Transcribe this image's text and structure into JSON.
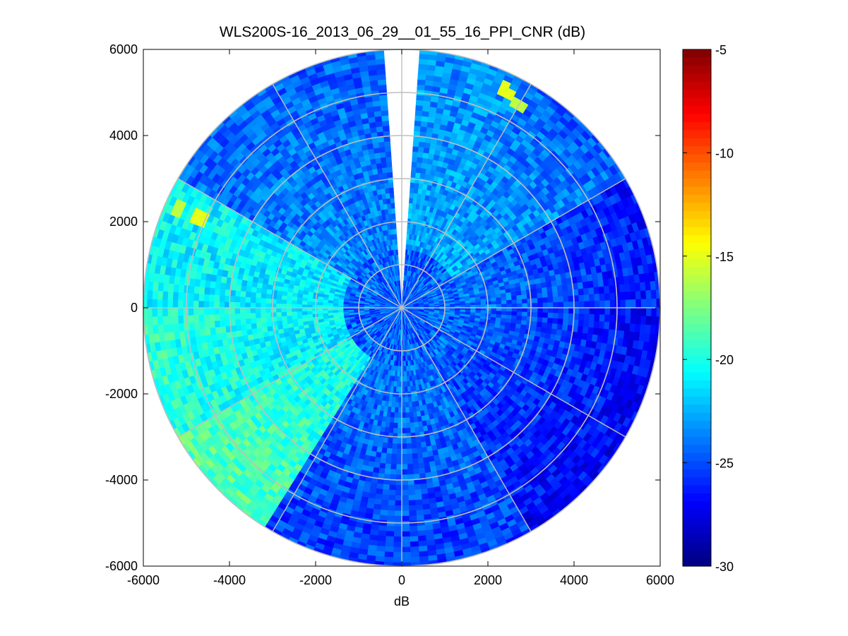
{
  "chart_data": {
    "type": "heatmap",
    "subtype": "polar-ppi",
    "title": "WLS200S-16_2013_06_29__01_55_16_PPI_CNR (dB)",
    "xlabel": "dB",
    "ylabel": "",
    "xlim": [
      -6000,
      6000
    ],
    "ylim": [
      -6000,
      6000
    ],
    "x_ticks": [
      -6000,
      -4000,
      -2000,
      0,
      2000,
      4000,
      6000
    ],
    "x_tick_labels": [
      "-6000",
      "-4000",
      "-2000",
      "0",
      "2000",
      "4000",
      "6000"
    ],
    "y_ticks": [
      6000,
      4000,
      2000,
      0,
      -2000,
      -4000,
      -6000
    ],
    "y_tick_labels": [
      "6000",
      "4000",
      "2000",
      "0",
      "-2000",
      "-4000",
      "-6000"
    ],
    "max_range": 6000,
    "range_rings": [
      1000,
      2000,
      3000,
      4000,
      5000,
      6000
    ],
    "spoke_angles_deg": [
      0,
      30,
      60,
      90,
      120,
      150,
      180,
      210,
      240,
      270,
      300,
      330
    ],
    "missing_sector_bearing_deg": [
      -4,
      4
    ],
    "colorbar": {
      "colormap": "jet",
      "min": -30,
      "max": -5,
      "ticks": [
        -5,
        -10,
        -15,
        -20,
        -25,
        -30
      ],
      "tick_labels": [
        "-5",
        "-10",
        "-15",
        "-20",
        "-25",
        "-30"
      ]
    },
    "sectors": [
      {
        "bearing_from": 4,
        "bearing_to": 30,
        "near_db": -22.5,
        "far_db": -23.5
      },
      {
        "bearing_from": 30,
        "bearing_to": 60,
        "near_db": -22.0,
        "far_db": -24.5
      },
      {
        "bearing_from": 60,
        "bearing_to": 90,
        "near_db": -23.0,
        "far_db": -26.5
      },
      {
        "bearing_from": 90,
        "bearing_to": 120,
        "near_db": -23.5,
        "far_db": -27.0
      },
      {
        "bearing_from": 120,
        "bearing_to": 150,
        "near_db": -24.0,
        "far_db": -27.0
      },
      {
        "bearing_from": 150,
        "bearing_to": 180,
        "near_db": -23.5,
        "far_db": -25.5
      },
      {
        "bearing_from": 180,
        "bearing_to": 212,
        "near_db": -23.5,
        "far_db": -25.5
      },
      {
        "bearing_from": 212,
        "bearing_to": 240,
        "near_db": -21.0,
        "far_db": -18.5
      },
      {
        "bearing_from": 240,
        "bearing_to": 270,
        "near_db": -21.5,
        "far_db": -19.5
      },
      {
        "bearing_from": 270,
        "bearing_to": 300,
        "near_db": -21.5,
        "far_db": -20.5
      },
      {
        "bearing_from": 300,
        "bearing_to": 326,
        "near_db": -23.0,
        "far_db": -24.5
      },
      {
        "bearing_from": 326,
        "bearing_to": 356,
        "near_db": -23.5,
        "far_db": -24.5
      }
    ],
    "hotspots": [
      {
        "x": 2450,
        "y": 5050,
        "db": -15
      },
      {
        "x": 2700,
        "y": 4750,
        "db": -16
      },
      {
        "x": -4700,
        "y": 2100,
        "db": -15
      },
      {
        "x": -5200,
        "y": 2300,
        "db": -16
      }
    ]
  }
}
